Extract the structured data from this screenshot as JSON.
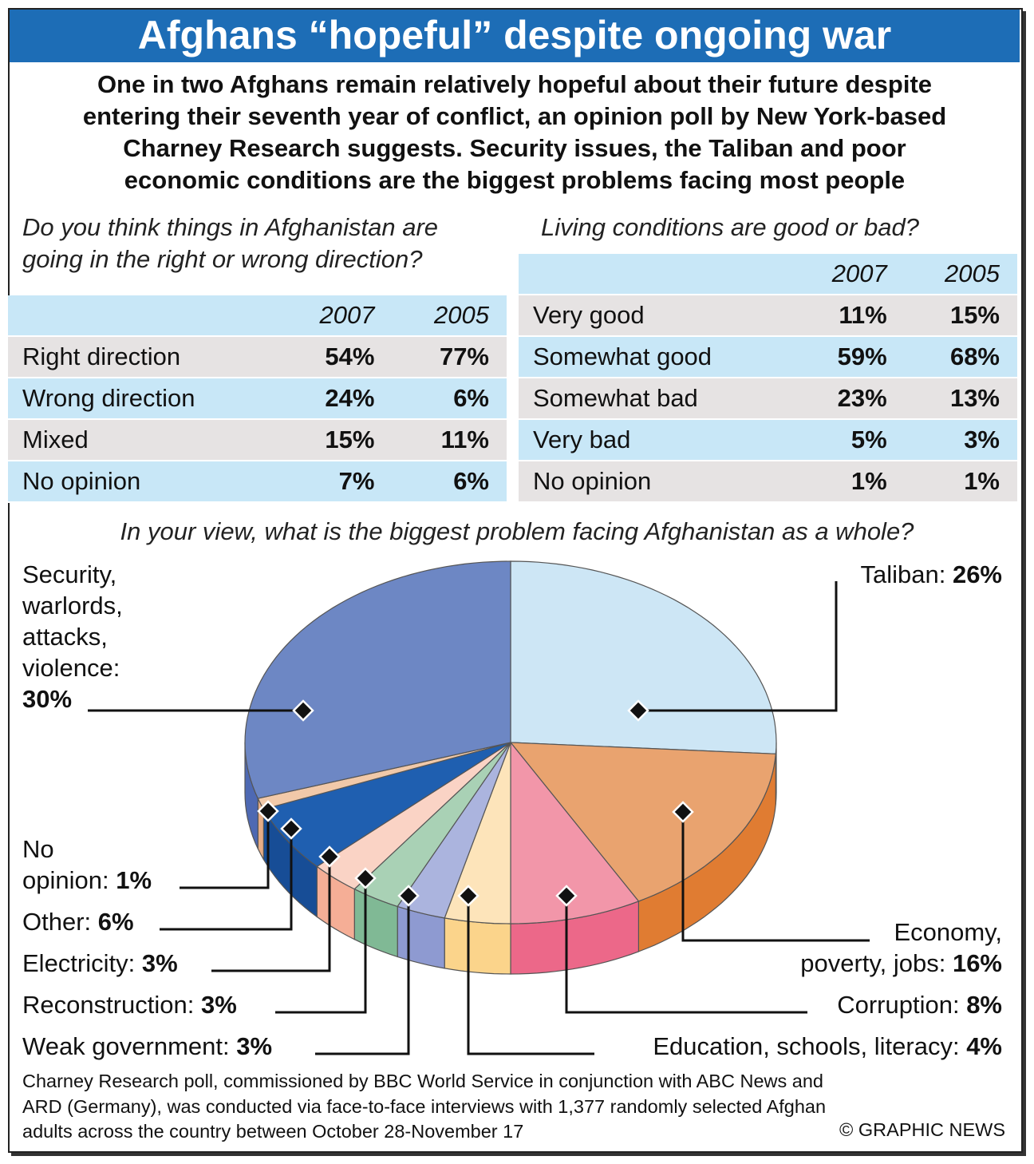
{
  "title": "Afghans “hopeful” despite ongoing war",
  "subtitle_lines": [
    "One in two Afghans remain relatively hopeful about their future despite",
    "entering their seventh year of conflict, an opinion poll by New York-based",
    "Charney Research suggests. Security issues, the Taliban and poor",
    "economic conditions are the biggest problems facing most people"
  ],
  "direction": {
    "question_lines": [
      "Do you think things in Afghanistan are",
      "going in the right or wrong direction?"
    ],
    "years": [
      "2007",
      "2005"
    ],
    "rows": [
      {
        "label": "Right direction",
        "v2007": "54%",
        "v2005": "77%"
      },
      {
        "label": "Wrong direction",
        "v2007": "24%",
        "v2005": "6%"
      },
      {
        "label": "Mixed",
        "v2007": "15%",
        "v2005": "11%"
      },
      {
        "label": "No opinion",
        "v2007": "7%",
        "v2005": "6%"
      }
    ]
  },
  "living": {
    "question": "Living conditions are good or bad?",
    "years": [
      "2007",
      "2005"
    ],
    "rows": [
      {
        "label": "Very good",
        "v2007": "11%",
        "v2005": "15%"
      },
      {
        "label": "Somewhat good",
        "v2007": "59%",
        "v2005": "68%"
      },
      {
        "label": "Somewhat bad",
        "v2007": "23%",
        "v2005": "13%"
      },
      {
        "label": "Very bad",
        "v2007": "5%",
        "v2005": "3%"
      },
      {
        "label": "No opinion",
        "v2007": "1%",
        "v2005": "1%"
      }
    ]
  },
  "chart_data": {
    "type": "pie",
    "title": "In your view, what is the biggest problem facing Afghanistan as a whole?",
    "slices": [
      {
        "label": "Taliban:",
        "value": 26,
        "value_label": "26%",
        "color": "#cde6f5",
        "side": "#a9cfe6"
      },
      {
        "label": "Economy, poverty, jobs:",
        "label_lines": [
          "Economy,",
          "poverty, jobs:"
        ],
        "value": 16,
        "value_label": "16%",
        "color": "#e9a36f",
        "side": "#e07c32"
      },
      {
        "label": "Corruption:",
        "value": 8,
        "value_label": "8%",
        "color": "#f296a9",
        "side": "#ec6889"
      },
      {
        "label": "Education, schools, literacy:",
        "value": 4,
        "value_label": "4%",
        "color": "#fde4ba",
        "side": "#fbd48b"
      },
      {
        "label": "Weak government:",
        "value": 3,
        "value_label": "3%",
        "color": "#abb4de",
        "side": "#8e9ad1"
      },
      {
        "label": "Reconstruction:",
        "value": 3,
        "value_label": "3%",
        "color": "#a9d1b5",
        "side": "#80b995"
      },
      {
        "label": "Electricity:",
        "value": 3,
        "value_label": "3%",
        "color": "#fad3c5",
        "side": "#f5ae96"
      },
      {
        "label": "Other:",
        "value": 6,
        "value_label": "6%",
        "color": "#1f5fb0",
        "side": "#174d96"
      },
      {
        "label": "No opinion:",
        "label_lines": [
          "No",
          "opinion:"
        ],
        "value": 1,
        "value_label": "1%",
        "color": "#f1c9a9",
        "side": "#e6ad86"
      },
      {
        "label": "Security, warlords, attacks, violence:",
        "label_lines": [
          "Security,",
          "warlords,",
          "attacks,",
          "violence:"
        ],
        "value": 30,
        "value_label": "30%",
        "color": "#6d87c4",
        "side": "#4e69b3"
      }
    ]
  },
  "footer_lines": [
    "Charney Research poll, commissioned by BBC World Service in conjunction with ABC News and",
    "ARD (Germany), was conducted via face-to-face interviews with 1,377 randomly selected Afghan",
    "adults across the country between October 28-November 17"
  ],
  "credit": "© GRAPHIC NEWS",
  "colors": {
    "title_bar": "#1d6db6",
    "row_blue": "#c8e7f7",
    "row_grey": "#e6e3e3"
  }
}
